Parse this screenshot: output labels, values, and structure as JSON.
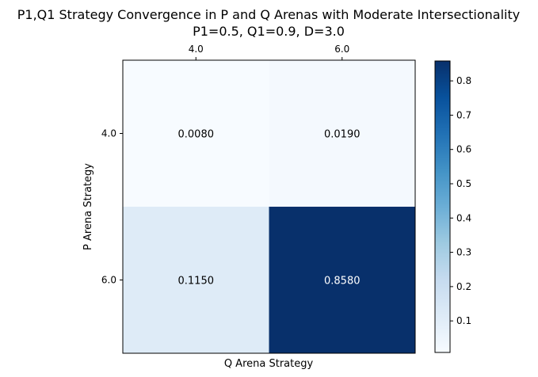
{
  "chart_data": {
    "type": "heatmap",
    "title": "P1,Q1 Strategy Convergence in P and Q Arenas with Moderate Intersectionality",
    "subtitle": "P1=0.5, Q1=0.9, D=3.0",
    "xlabel": "Q Arena Strategy",
    "ylabel": "P Arena Strategy",
    "x_categories": [
      "4.0",
      "6.0"
    ],
    "y_categories": [
      "4.0",
      "6.0"
    ],
    "x_tick_position": "top",
    "values": [
      [
        0.008,
        0.019
      ],
      [
        0.115,
        0.858
      ]
    ],
    "value_labels": [
      [
        "0.0080",
        "0.0190"
      ],
      [
        "0.1150",
        "0.8580"
      ]
    ],
    "colormap": "Blues",
    "colorbar": {
      "range": [
        0.008,
        0.858
      ],
      "ticks": [
        0.1,
        0.2,
        0.3,
        0.4,
        0.5,
        0.6,
        0.7,
        0.8
      ],
      "tick_labels": [
        "0.1",
        "0.2",
        "0.3",
        "0.4",
        "0.5",
        "0.6",
        "0.7",
        "0.8"
      ]
    },
    "grid": false
  }
}
